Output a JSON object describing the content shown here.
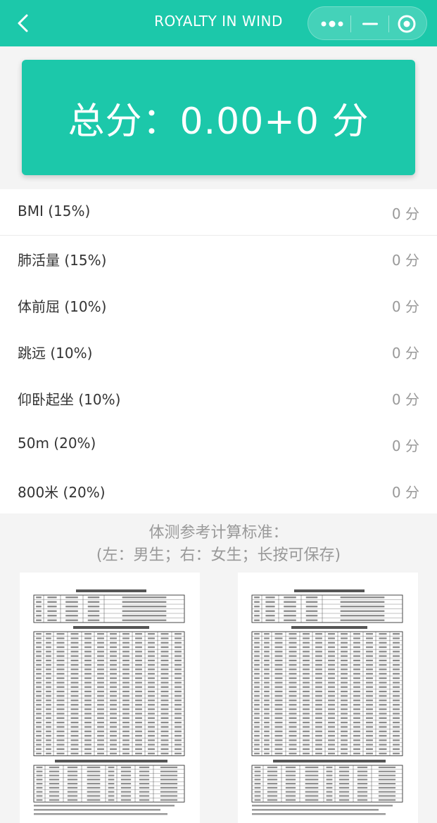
{
  "header": {
    "title": "ROYALTY IN WIND",
    "back_icon": "chevron-left-icon",
    "more_icon": "more-dots-icon",
    "minimize_icon": "minimize-icon",
    "close_icon": "target-close-icon"
  },
  "score": {
    "text": "总分：0.00+0 分"
  },
  "items": [
    {
      "label": "BMI (15%)",
      "value": "0 分"
    },
    {
      "label": "肺活量 (15%)",
      "value": "0 分"
    },
    {
      "label": "体前屈 (10%)",
      "value": "0 分"
    },
    {
      "label": "跳远 (10%)",
      "value": "0 分"
    },
    {
      "label": "仰卧起坐 (10%)",
      "value": "0 分"
    },
    {
      "label": "50m (20%)",
      "value": "0 分"
    },
    {
      "label": "800米 (20%)",
      "value": "0 分"
    }
  ],
  "reference": {
    "title_line1": "体测参考计算标准：",
    "title_line2": "(左：男生；右：女生；长按可保存)",
    "male_image_label": "male-standard-table",
    "female_image_label": "female-standard-table"
  },
  "colors": {
    "brand": "#1cc8aa",
    "background": "#f4f4f4",
    "muted_text": "#999999"
  }
}
